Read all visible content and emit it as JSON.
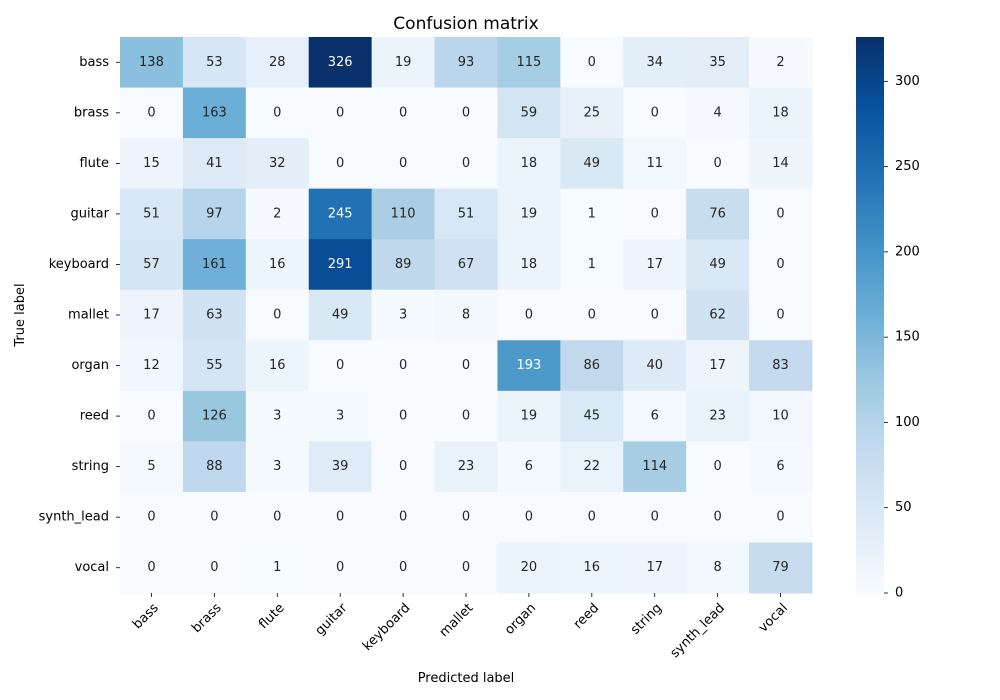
{
  "chart_data": {
    "type": "heatmap",
    "title": "Confusion matrix",
    "xlabel": "Predicted label",
    "ylabel": "True label",
    "x_categories": [
      "bass",
      "brass",
      "flute",
      "guitar",
      "keyboard",
      "mallet",
      "organ",
      "reed",
      "string",
      "synth_lead",
      "vocal"
    ],
    "y_categories": [
      "bass",
      "brass",
      "flute",
      "guitar",
      "keyboard",
      "mallet",
      "organ",
      "reed",
      "string",
      "synth_lead",
      "vocal"
    ],
    "values": [
      [
        138,
        53,
        28,
        326,
        19,
        93,
        115,
        0,
        34,
        35,
        2
      ],
      [
        0,
        163,
        0,
        0,
        0,
        0,
        59,
        25,
        0,
        4,
        18
      ],
      [
        15,
        41,
        32,
        0,
        0,
        0,
        18,
        49,
        11,
        0,
        14
      ],
      [
        51,
        97,
        2,
        245,
        110,
        51,
        19,
        1,
        0,
        76,
        0
      ],
      [
        57,
        161,
        16,
        291,
        89,
        67,
        18,
        1,
        17,
        49,
        0
      ],
      [
        17,
        63,
        0,
        49,
        3,
        8,
        0,
        0,
        0,
        62,
        0
      ],
      [
        12,
        55,
        16,
        0,
        0,
        0,
        193,
        86,
        40,
        17,
        83
      ],
      [
        0,
        126,
        3,
        3,
        0,
        0,
        19,
        45,
        6,
        23,
        10
      ],
      [
        5,
        88,
        3,
        39,
        0,
        23,
        6,
        22,
        114,
        0,
        6
      ],
      [
        0,
        0,
        0,
        0,
        0,
        0,
        0,
        0,
        0,
        0,
        0
      ],
      [
        0,
        0,
        1,
        0,
        0,
        0,
        20,
        16,
        17,
        8,
        79
      ]
    ],
    "colorbar": {
      "colormap": "Blues",
      "vmin": 0,
      "vmax": 326,
      "ticks": [
        0,
        50,
        100,
        150,
        200,
        250,
        300
      ]
    },
    "colors": {
      "low": "#f7fbff",
      "high": "#08306b"
    }
  }
}
